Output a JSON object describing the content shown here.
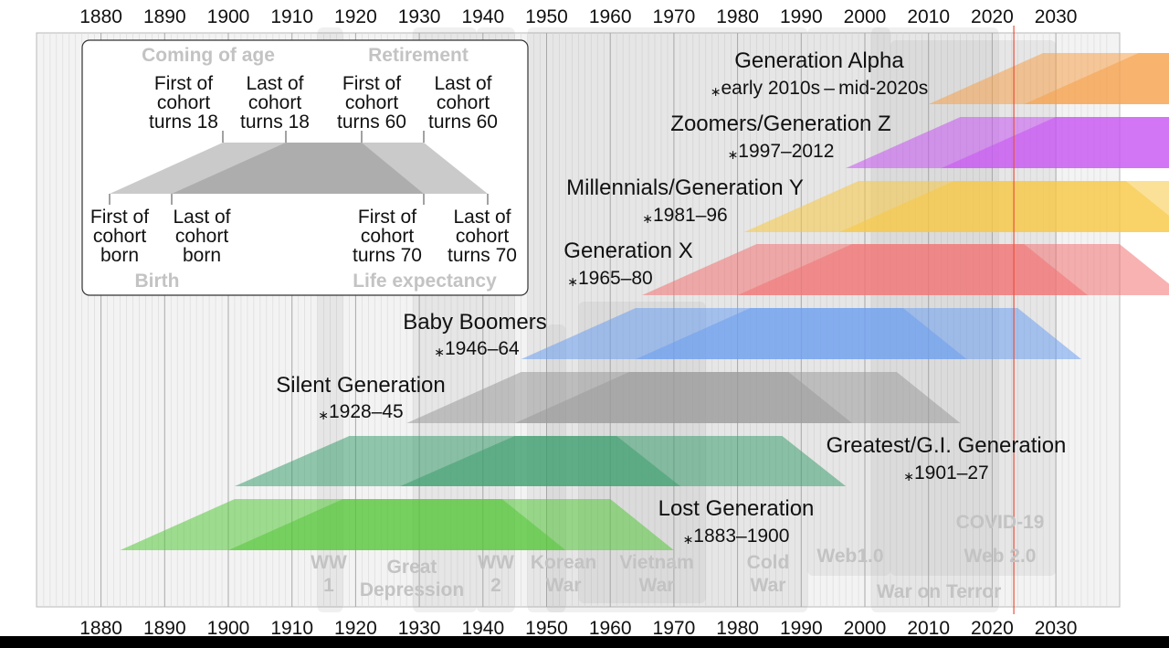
{
  "years": [
    "1880",
    "1890",
    "1900",
    "1910",
    "1920",
    "1930",
    "1940",
    "1950",
    "1960",
    "1970",
    "1980",
    "1990",
    "2000",
    "2010",
    "2020",
    "2030"
  ],
  "legend": {
    "coming_of_age": "Coming of age",
    "retirement": "Retirement",
    "birth": "Birth",
    "life_expectancy": "Life expectancy",
    "first_turns_18": [
      "First of",
      "cohort",
      "turns 18"
    ],
    "last_turns_18": [
      "Last of",
      "cohort",
      "turns 18"
    ],
    "first_turns_60": [
      "First of",
      "cohort",
      "turns 60"
    ],
    "last_turns_60": [
      "Last of",
      "cohort",
      "turns 60"
    ],
    "first_born": [
      "First of",
      "cohort",
      "born"
    ],
    "last_born": [
      "Last of",
      "cohort",
      "born"
    ],
    "first_turns_70": [
      "First of",
      "cohort",
      "turns 70"
    ],
    "last_turns_70": [
      "Last of",
      "cohort",
      "turns 70"
    ]
  },
  "generations": [
    {
      "name": "Generation Alpha",
      "years": "early 2010s – mid-2020s",
      "color": "#f5a04a"
    },
    {
      "name": "Zoomers/Generation Z",
      "years": "1997–2012",
      "color": "#c653f2"
    },
    {
      "name": "Millennials/Generation Y",
      "years": "1981–96",
      "color": "#f7c842"
    },
    {
      "name": "Generation X",
      "years": "1965–80",
      "color": "#f27272"
    },
    {
      "name": "Baby Boomers",
      "years": "1946–64",
      "color": "#6c9ef0"
    },
    {
      "name": "Silent Generation",
      "years": "1928–45",
      "color": "#9a9a9a"
    },
    {
      "name": "Greatest/G.I. Generation",
      "years": "1901–27",
      "color": "#3d9f6f"
    },
    {
      "name": "Lost Generation",
      "years": "1883–1900",
      "color": "#55c63b"
    }
  ],
  "events": [
    {
      "label": [
        "WW",
        "1"
      ]
    },
    {
      "label": [
        "Great",
        "Depression"
      ]
    },
    {
      "label": [
        "WW",
        "2"
      ]
    },
    {
      "label": [
        "Korean",
        "War"
      ]
    },
    {
      "label": [
        "Vietnam",
        "War"
      ]
    },
    {
      "label": [
        "Cold",
        "War"
      ]
    },
    {
      "label": [
        "Web1.0"
      ]
    },
    {
      "label": [
        "COVID-19"
      ]
    },
    {
      "label": [
        "Web 2.0"
      ]
    },
    {
      "label": [
        "War on Terror"
      ]
    }
  ],
  "current_year_line_color": "#e8513c"
}
